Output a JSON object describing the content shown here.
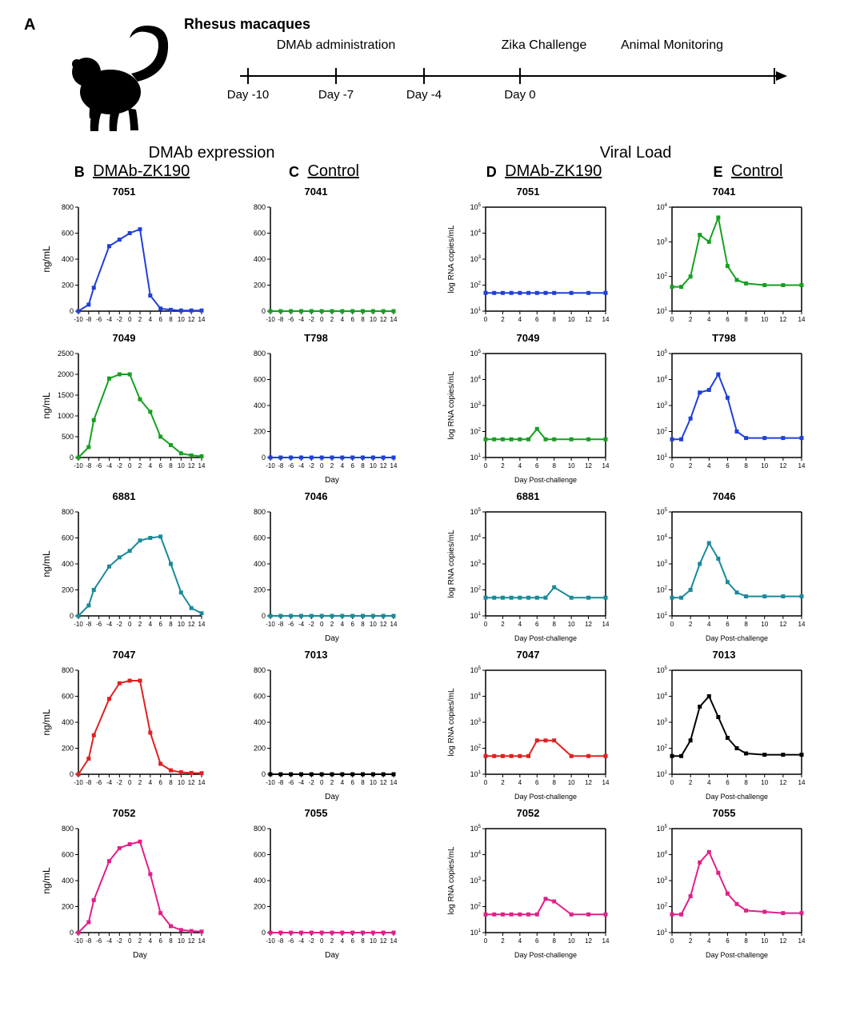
{
  "panelA": {
    "label": "A",
    "title": "Rhesus macaques",
    "events": [
      {
        "label": "DMAb administration",
        "span": [
          0,
          2
        ]
      },
      {
        "label": "Zika Challenge",
        "span": [
          3,
          3
        ]
      },
      {
        "label": "Animal Monitoring",
        "span": [
          4,
          5
        ]
      }
    ],
    "ticks": [
      "Day -10",
      "Day -7",
      "Day -4",
      "Day 0"
    ]
  },
  "section_titles": {
    "left": "DMAb expression",
    "right": "Viral Load"
  },
  "columns": {
    "B": {
      "label": "B",
      "title": "DMAb-ZK190"
    },
    "C": {
      "label": "C",
      "title": "Control"
    },
    "D": {
      "label": "D",
      "title": "DMAb-ZK190"
    },
    "E": {
      "label": "E",
      "title": "Control"
    }
  },
  "expression_axis": {
    "x_ticks": [
      -10,
      -8,
      -6,
      -4,
      -2,
      0,
      2,
      4,
      6,
      8,
      10,
      12,
      14
    ],
    "x_label": "Day",
    "y_label": "ng/mL",
    "y_ticks_std": [
      0,
      200,
      400,
      600,
      800
    ],
    "tick_fontsize": 8,
    "axis_color": "#000000",
    "line_width": 2
  },
  "viral_axis": {
    "x_ticks": [
      0,
      2,
      4,
      6,
      8,
      10,
      12,
      14
    ],
    "x_label": "Day Post-challenge",
    "y_label": "log  RNA copies/mL",
    "y_exp": [
      1,
      2,
      3,
      4,
      5
    ],
    "tick_fontsize": 8,
    "axis_color": "#000000",
    "line_width": 2
  },
  "colors": {
    "blue": "#2040d8",
    "green": "#16a020",
    "teal": "#1a8a9a",
    "red": "#e02020",
    "magenta": "#e0208a",
    "black": "#000000"
  },
  "rows": [
    {
      "B": {
        "id": "7051",
        "color": "blue",
        "ymax": 800,
        "ystep": 200,
        "points": [
          [
            -10,
            0
          ],
          [
            -8,
            50
          ],
          [
            -7,
            180
          ],
          [
            -4,
            500
          ],
          [
            -2,
            550
          ],
          [
            0,
            600
          ],
          [
            2,
            630
          ],
          [
            4,
            120
          ],
          [
            6,
            20
          ],
          [
            8,
            10
          ],
          [
            10,
            5
          ],
          [
            12,
            5
          ],
          [
            14,
            5
          ]
        ]
      },
      "C": {
        "id": "7041",
        "color": "green",
        "ymax": 800,
        "ystep": 200,
        "points": [
          [
            -10,
            0
          ],
          [
            -8,
            0
          ],
          [
            -6,
            0
          ],
          [
            -4,
            0
          ],
          [
            -2,
            0
          ],
          [
            0,
            0
          ],
          [
            2,
            0
          ],
          [
            4,
            0
          ],
          [
            6,
            0
          ],
          [
            8,
            0
          ],
          [
            10,
            0
          ],
          [
            12,
            0
          ],
          [
            14,
            0
          ]
        ]
      },
      "D": {
        "id": "7051",
        "color": "blue",
        "points": [
          [
            0,
            1.7
          ],
          [
            1,
            1.7
          ],
          [
            2,
            1.7
          ],
          [
            3,
            1.7
          ],
          [
            4,
            1.7
          ],
          [
            5,
            1.7
          ],
          [
            6,
            1.7
          ],
          [
            7,
            1.7
          ],
          [
            8,
            1.7
          ],
          [
            10,
            1.7
          ],
          [
            12,
            1.7
          ],
          [
            14,
            1.7
          ]
        ]
      },
      "E": {
        "id": "7041",
        "color": "green",
        "ymax_exp": 4,
        "points": [
          [
            0,
            1.7
          ],
          [
            1,
            1.7
          ],
          [
            2,
            2.0
          ],
          [
            3,
            3.2
          ],
          [
            4,
            3.0
          ],
          [
            5,
            3.7
          ],
          [
            6,
            2.3
          ],
          [
            7,
            1.9
          ],
          [
            8,
            1.8
          ],
          [
            10,
            1.75
          ],
          [
            12,
            1.75
          ],
          [
            14,
            1.75
          ]
        ]
      }
    },
    {
      "B": {
        "id": "7049",
        "color": "green",
        "ymax": 2500,
        "ystep": 500,
        "points": [
          [
            -10,
            0
          ],
          [
            -8,
            250
          ],
          [
            -7,
            900
          ],
          [
            -4,
            1900
          ],
          [
            -2,
            2000
          ],
          [
            0,
            2000
          ],
          [
            2,
            1400
          ],
          [
            4,
            1100
          ],
          [
            6,
            500
          ],
          [
            8,
            300
          ],
          [
            10,
            100
          ],
          [
            12,
            50
          ],
          [
            14,
            30
          ]
        ]
      },
      "C": {
        "id": "T798",
        "color": "blue",
        "ymax": 800,
        "ystep": 200,
        "points": [
          [
            -10,
            0
          ],
          [
            -8,
            0
          ],
          [
            -6,
            0
          ],
          [
            -4,
            0
          ],
          [
            -2,
            0
          ],
          [
            0,
            0
          ],
          [
            2,
            0
          ],
          [
            4,
            0
          ],
          [
            6,
            0
          ],
          [
            8,
            0
          ],
          [
            10,
            0
          ],
          [
            12,
            0
          ],
          [
            14,
            0
          ]
        ],
        "xlabel_below": true
      },
      "D": {
        "id": "7049",
        "color": "green",
        "points": [
          [
            0,
            1.7
          ],
          [
            1,
            1.7
          ],
          [
            2,
            1.7
          ],
          [
            3,
            1.7
          ],
          [
            4,
            1.7
          ],
          [
            5,
            1.7
          ],
          [
            6,
            2.1
          ],
          [
            7,
            1.7
          ],
          [
            8,
            1.7
          ],
          [
            10,
            1.7
          ],
          [
            12,
            1.7
          ],
          [
            14,
            1.7
          ]
        ],
        "xlabel_below": true
      },
      "E": {
        "id": "T798",
        "color": "blue",
        "points": [
          [
            0,
            1.7
          ],
          [
            1,
            1.7
          ],
          [
            2,
            2.5
          ],
          [
            3,
            3.5
          ],
          [
            4,
            3.6
          ],
          [
            5,
            4.2
          ],
          [
            6,
            3.3
          ],
          [
            7,
            2.0
          ],
          [
            8,
            1.75
          ],
          [
            10,
            1.75
          ],
          [
            12,
            1.75
          ],
          [
            14,
            1.75
          ]
        ]
      }
    },
    {
      "B": {
        "id": "6881",
        "color": "teal",
        "ymax": 800,
        "ystep": 200,
        "points": [
          [
            -10,
            0
          ],
          [
            -8,
            80
          ],
          [
            -7,
            200
          ],
          [
            -4,
            380
          ],
          [
            -2,
            450
          ],
          [
            0,
            500
          ],
          [
            2,
            580
          ],
          [
            4,
            600
          ],
          [
            6,
            610
          ],
          [
            8,
            400
          ],
          [
            10,
            180
          ],
          [
            12,
            60
          ],
          [
            14,
            20
          ]
        ]
      },
      "C": {
        "id": "7046",
        "color": "teal",
        "ymax": 800,
        "ystep": 200,
        "points": [
          [
            -10,
            0
          ],
          [
            -8,
            0
          ],
          [
            -6,
            0
          ],
          [
            -4,
            0
          ],
          [
            -2,
            0
          ],
          [
            0,
            0
          ],
          [
            2,
            0
          ],
          [
            4,
            0
          ],
          [
            6,
            0
          ],
          [
            8,
            0
          ],
          [
            10,
            0
          ],
          [
            12,
            0
          ],
          [
            14,
            0
          ]
        ],
        "xlabel_below": true
      },
      "D": {
        "id": "6881",
        "color": "teal",
        "points": [
          [
            0,
            1.7
          ],
          [
            1,
            1.7
          ],
          [
            2,
            1.7
          ],
          [
            3,
            1.7
          ],
          [
            4,
            1.7
          ],
          [
            5,
            1.7
          ],
          [
            6,
            1.7
          ],
          [
            7,
            1.7
          ],
          [
            8,
            2.1
          ],
          [
            10,
            1.7
          ],
          [
            12,
            1.7
          ],
          [
            14,
            1.7
          ]
        ],
        "xlabel_below": true
      },
      "E": {
        "id": "7046",
        "color": "teal",
        "points": [
          [
            0,
            1.7
          ],
          [
            1,
            1.7
          ],
          [
            2,
            2.0
          ],
          [
            3,
            3.0
          ],
          [
            4,
            3.8
          ],
          [
            5,
            3.2
          ],
          [
            6,
            2.3
          ],
          [
            7,
            1.9
          ],
          [
            8,
            1.75
          ],
          [
            10,
            1.75
          ],
          [
            12,
            1.75
          ],
          [
            14,
            1.75
          ]
        ],
        "xlabel_below": true
      }
    },
    {
      "B": {
        "id": "7047",
        "color": "red",
        "ymax": 800,
        "ystep": 200,
        "points": [
          [
            -10,
            0
          ],
          [
            -8,
            120
          ],
          [
            -7,
            300
          ],
          [
            -4,
            580
          ],
          [
            -2,
            700
          ],
          [
            0,
            720
          ],
          [
            2,
            720
          ],
          [
            4,
            320
          ],
          [
            6,
            80
          ],
          [
            8,
            30
          ],
          [
            10,
            15
          ],
          [
            12,
            10
          ],
          [
            14,
            8
          ]
        ]
      },
      "C": {
        "id": "7013",
        "color": "black",
        "ymax": 800,
        "ystep": 200,
        "points": [
          [
            -10,
            0
          ],
          [
            -8,
            0
          ],
          [
            -6,
            0
          ],
          [
            -4,
            0
          ],
          [
            -2,
            0
          ],
          [
            0,
            0
          ],
          [
            2,
            0
          ],
          [
            4,
            0
          ],
          [
            6,
            0
          ],
          [
            8,
            0
          ],
          [
            10,
            0
          ],
          [
            12,
            0
          ],
          [
            14,
            0
          ]
        ],
        "xlabel_below": true
      },
      "D": {
        "id": "7047",
        "color": "red",
        "points": [
          [
            0,
            1.7
          ],
          [
            1,
            1.7
          ],
          [
            2,
            1.7
          ],
          [
            3,
            1.7
          ],
          [
            4,
            1.7
          ],
          [
            5,
            1.7
          ],
          [
            6,
            2.3
          ],
          [
            7,
            2.3
          ],
          [
            8,
            2.3
          ],
          [
            10,
            1.7
          ],
          [
            12,
            1.7
          ],
          [
            14,
            1.7
          ]
        ],
        "xlabel_below": true
      },
      "E": {
        "id": "7013",
        "color": "black",
        "points": [
          [
            0,
            1.7
          ],
          [
            1,
            1.7
          ],
          [
            2,
            2.3
          ],
          [
            3,
            3.6
          ],
          [
            4,
            4.0
          ],
          [
            5,
            3.2
          ],
          [
            6,
            2.4
          ],
          [
            7,
            2.0
          ],
          [
            8,
            1.8
          ],
          [
            10,
            1.75
          ],
          [
            12,
            1.75
          ],
          [
            14,
            1.75
          ]
        ],
        "xlabel_below": true
      }
    },
    {
      "B": {
        "id": "7052",
        "color": "magenta",
        "ymax": 800,
        "ystep": 200,
        "points": [
          [
            -10,
            0
          ],
          [
            -8,
            80
          ],
          [
            -7,
            250
          ],
          [
            -4,
            550
          ],
          [
            -2,
            650
          ],
          [
            0,
            680
          ],
          [
            2,
            700
          ],
          [
            4,
            450
          ],
          [
            6,
            150
          ],
          [
            8,
            50
          ],
          [
            10,
            20
          ],
          [
            12,
            12
          ],
          [
            14,
            8
          ]
        ],
        "xlabel_below": true
      },
      "C": {
        "id": "7055",
        "color": "magenta",
        "ymax": 800,
        "ystep": 200,
        "points": [
          [
            -10,
            0
          ],
          [
            -8,
            0
          ],
          [
            -6,
            0
          ],
          [
            -4,
            0
          ],
          [
            -2,
            0
          ],
          [
            0,
            0
          ],
          [
            2,
            0
          ],
          [
            4,
            0
          ],
          [
            6,
            0
          ],
          [
            8,
            0
          ],
          [
            10,
            0
          ],
          [
            12,
            0
          ],
          [
            14,
            0
          ]
        ],
        "xlabel_below": true
      },
      "D": {
        "id": "7052",
        "color": "magenta",
        "points": [
          [
            0,
            1.7
          ],
          [
            1,
            1.7
          ],
          [
            2,
            1.7
          ],
          [
            3,
            1.7
          ],
          [
            4,
            1.7
          ],
          [
            5,
            1.7
          ],
          [
            6,
            1.7
          ],
          [
            7,
            2.3
          ],
          [
            8,
            2.2
          ],
          [
            10,
            1.7
          ],
          [
            12,
            1.7
          ],
          [
            14,
            1.7
          ]
        ],
        "xlabel_below": true
      },
      "E": {
        "id": "7055",
        "color": "magenta",
        "points": [
          [
            0,
            1.7
          ],
          [
            1,
            1.7
          ],
          [
            2,
            2.4
          ],
          [
            3,
            3.7
          ],
          [
            4,
            4.1
          ],
          [
            5,
            3.3
          ],
          [
            6,
            2.5
          ],
          [
            7,
            2.1
          ],
          [
            8,
            1.85
          ],
          [
            10,
            1.8
          ],
          [
            12,
            1.75
          ],
          [
            14,
            1.75
          ]
        ],
        "xlabel_below": true
      }
    }
  ]
}
